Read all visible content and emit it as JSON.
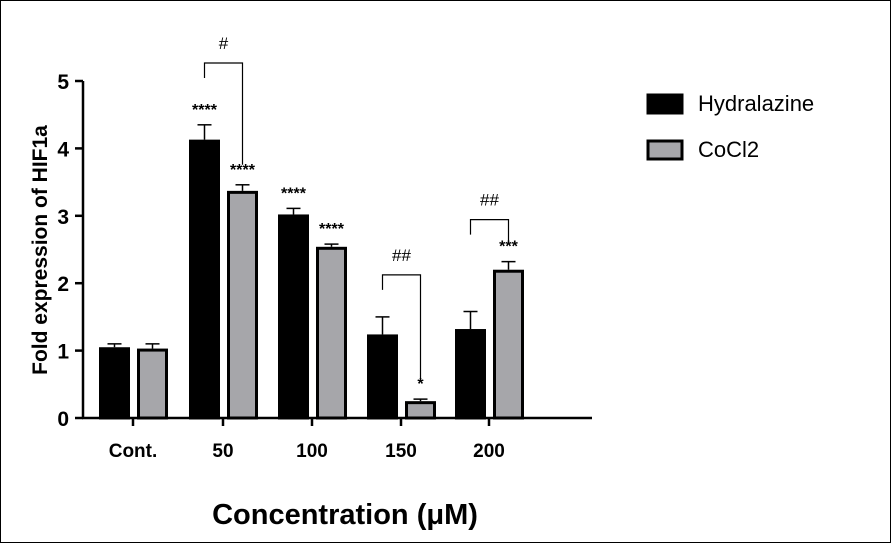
{
  "chart_data": {
    "type": "bar",
    "title": "",
    "xlabel": "Concentration (μM)",
    "ylabel": "Fold expression of HIF1a",
    "ylim": [
      0,
      5
    ],
    "yticks": [
      "0",
      "1",
      "2",
      "3",
      "4",
      "5"
    ],
    "categories": [
      "Cont.",
      "50",
      "100",
      "150",
      "200"
    ],
    "series": [
      {
        "name": "Hydralazine",
        "color": "#000000",
        "values": [
          1.05,
          4.13,
          3.02,
          1.24,
          1.32
        ],
        "errors": [
          0.05,
          0.22,
          0.09,
          0.26,
          0.26
        ],
        "annotations": [
          "",
          "****",
          "****",
          "",
          ""
        ]
      },
      {
        "name": "CoCl2",
        "color": "#a6a6aa",
        "values": [
          1.03,
          3.37,
          2.54,
          0.25,
          2.2
        ],
        "errors": [
          0.07,
          0.09,
          0.04,
          0.03,
          0.12
        ],
        "annotations": [
          "",
          "****",
          "****",
          "*",
          "***"
        ]
      }
    ],
    "comparisons": [
      {
        "category": "50",
        "label": "#"
      },
      {
        "category": "150",
        "label": "##"
      },
      {
        "category": "200",
        "label": "##"
      }
    ],
    "legend_position": "top-right",
    "grid": false
  }
}
